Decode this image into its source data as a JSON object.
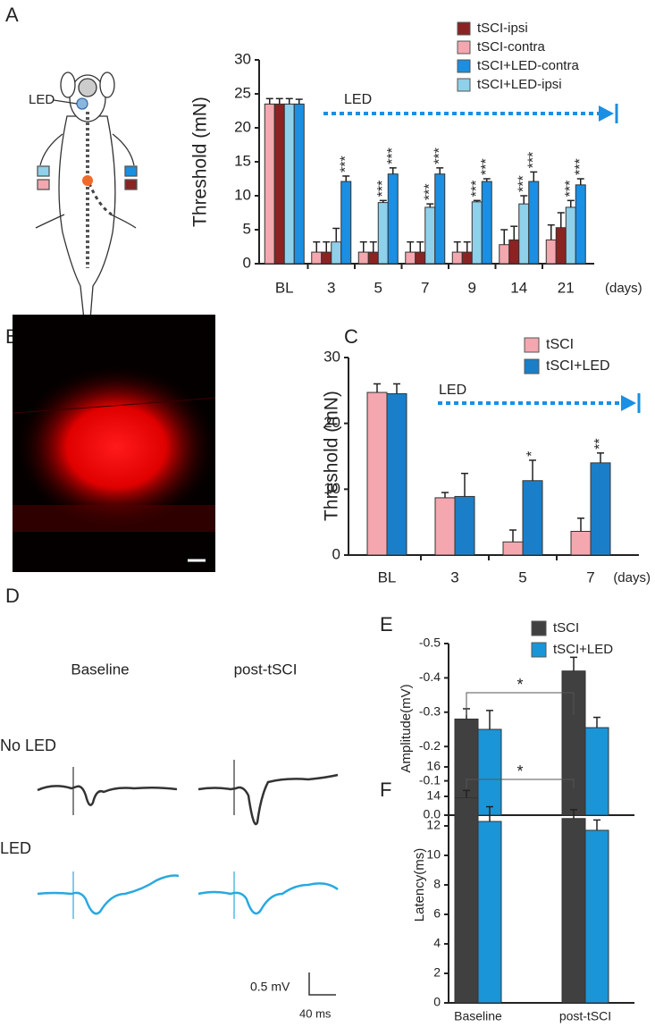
{
  "chart_data": [
    {
      "type": "bar",
      "panel": "A",
      "y_label": "Threshold (mN)",
      "x_unit": "(days)",
      "annotation": "LED",
      "categories": [
        "BL",
        "3",
        "5",
        "7",
        "9",
        "14",
        "21"
      ],
      "ylim": [
        0,
        30
      ],
      "yticks": [
        0,
        5,
        10,
        15,
        20,
        25,
        30
      ],
      "series": [
        {
          "name": "tSCI-ipsi",
          "color": "#8b2323",
          "values": [
            23.5,
            1.7,
            1.7,
            1.7,
            1.7,
            3.5,
            5.3
          ],
          "errors": [
            0.8,
            1.5,
            1.5,
            1.5,
            1.5,
            2.0,
            2.2
          ],
          "significance": [
            null,
            null,
            null,
            null,
            null,
            null,
            null
          ]
        },
        {
          "name": "tSCI-contra",
          "color": "#f4a7ae",
          "values": [
            23.5,
            1.7,
            1.7,
            1.7,
            1.7,
            2.8,
            3.5
          ],
          "errors": [
            0.8,
            1.5,
            1.5,
            1.5,
            1.5,
            2.2,
            2.2
          ],
          "significance": [
            null,
            null,
            null,
            null,
            null,
            null,
            null
          ]
        },
        {
          "name": "tSCI+LED-contra",
          "color": "#1a8fe3",
          "values": [
            23.5,
            12.1,
            13.2,
            13.2,
            12.1,
            12.1,
            11.6
          ],
          "errors": [
            0.7,
            0.8,
            0.9,
            0.9,
            0.4,
            1.4,
            0.9
          ],
          "significance": [
            null,
            "***",
            "***",
            "***",
            "***",
            "***",
            "***"
          ]
        },
        {
          "name": "tSCI+LED-ipsi",
          "color": "#8fd0ea",
          "values": [
            23.5,
            3.2,
            9.0,
            8.3,
            9.1,
            8.8,
            8.3
          ],
          "errors": [
            0.8,
            2.0,
            0.3,
            0.5,
            0.2,
            1.2,
            1.0
          ],
          "significance": [
            null,
            null,
            "***",
            "***",
            "***",
            "***",
            "***"
          ]
        }
      ]
    },
    {
      "type": "bar",
      "panel": "C",
      "y_label": "Threshold (mN)",
      "x_unit": "(days)",
      "annotation": "LED",
      "categories": [
        "BL",
        "3",
        "5",
        "7"
      ],
      "ylim": [
        0,
        30
      ],
      "yticks": [
        0,
        10,
        20,
        30
      ],
      "series": [
        {
          "name": "tSCI",
          "color": "#f4a7ae",
          "values": [
            24.7,
            8.7,
            2.0,
            3.6
          ],
          "errors": [
            1.3,
            0.8,
            1.8,
            2.0
          ],
          "significance": [
            null,
            null,
            null,
            null
          ]
        },
        {
          "name": "tSCI+LED",
          "color": "#1a7fc8",
          "values": [
            24.5,
            8.9,
            11.3,
            14.0
          ],
          "errors": [
            1.5,
            3.5,
            3.1,
            1.5
          ],
          "significance": [
            null,
            null,
            "*",
            "**"
          ]
        }
      ]
    },
    {
      "type": "bar",
      "panel": "E",
      "y_label": "Amplitude(mV)",
      "comparison": "*",
      "categories": [
        null,
        null
      ],
      "ylim": [
        0,
        -0.5
      ],
      "yticks": [
        {
          "value": 0,
          "label": "0.0"
        },
        -0.1,
        -0.2,
        -0.3,
        -0.4,
        -0.5
      ],
      "series": [
        {
          "name": "tSCI",
          "color": "#404040",
          "values": [
            -0.28,
            -0.42
          ],
          "errors": [
            0.03,
            0.04
          ]
        },
        {
          "name": "tSCI+LED",
          "color": "#1a96d8",
          "values": [
            -0.25,
            -0.255
          ],
          "errors": [
            0.055,
            0.03
          ]
        }
      ]
    },
    {
      "type": "bar",
      "panel": "F",
      "y_label": "Latency(ms)",
      "comparison": "*",
      "categories": [
        "Baseline",
        "post-tSCI"
      ],
      "ylim": [
        0,
        16
      ],
      "yticks": [
        0,
        2,
        4,
        6,
        8,
        10,
        12,
        14,
        16
      ],
      "series": [
        {
          "color": "#404040",
          "values": [
            13.9,
            12.5
          ],
          "errors": [
            0.5,
            0.6
          ]
        },
        {
          "color": "#1a96d8",
          "values": [
            12.3,
            11.7
          ],
          "errors": [
            1.0,
            0.7
          ]
        }
      ]
    }
  ],
  "illustration": {
    "label": "LED"
  },
  "image_panel": {
    "panel": "B"
  },
  "traces_panel": {
    "panel": "D",
    "columns": [
      "Baseline",
      "post-tSCI"
    ],
    "rows": [
      "No LED",
      "LED"
    ],
    "scale_y": "0.5 mV",
    "scale_x": "40 ms"
  }
}
